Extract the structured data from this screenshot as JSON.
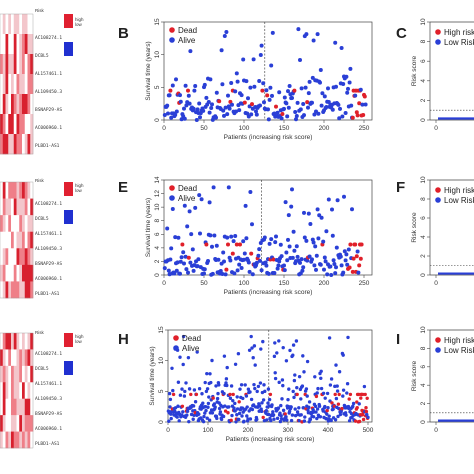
{
  "colors": {
    "dead": "#e0202a",
    "alive": "#2a3fd6",
    "high": "#e0202a",
    "low": "#2a3fd6"
  },
  "panel_labels": {
    "B": "B",
    "C": "C",
    "E": "E",
    "F": "F",
    "H": "H",
    "I": "I"
  },
  "heatmaps": [
    {
      "header": "Risk",
      "legend": [
        "high",
        "low"
      ],
      "genes": [
        "AC108274.1",
        "DCBL5",
        "AL157461.1",
        "AL109450.3",
        "BSNAP29-AS",
        "AC006960.1",
        "PLBD1-AS1"
      ]
    },
    {
      "header": "Risk",
      "legend": [
        "high",
        "low"
      ],
      "genes": [
        "AC108274.1",
        "DCBL5",
        "AL157461.1",
        "AL109450.3",
        "BSNAP29-AS",
        "AC006960.1",
        "PLBD1-AS1"
      ]
    },
    {
      "header": "Risk",
      "legend": [
        "high",
        "low"
      ],
      "genes": [
        "AC108274.1",
        "DCBL5",
        "AL157461.1",
        "AL109450.3",
        "BSNAP29-AS",
        "AC006960.1",
        "PLBD1-AS1"
      ]
    }
  ],
  "chart_data": [
    {
      "panel": "B",
      "type": "scatter",
      "xlabel": "Patients (increasing risk score)",
      "ylabel": "Survival time (years)",
      "xlim": [
        0,
        260
      ],
      "ylim": [
        0,
        15
      ],
      "xticks": [
        0,
        50,
        100,
        150,
        200,
        250
      ],
      "yticks": [
        0,
        5,
        10,
        15
      ],
      "cutoff_x": 126,
      "legend": [
        "Dead",
        "Alive"
      ],
      "legend_position": "top-left",
      "n_patients": 252,
      "seed": 11
    },
    {
      "panel": "E",
      "type": "scatter",
      "xlabel": "Patients (increasing risk score)",
      "ylabel": "Survival time (years)",
      "xlim": [
        0,
        260
      ],
      "ylim": [
        0,
        14
      ],
      "xticks": [
        0,
        50,
        100,
        150,
        200,
        250
      ],
      "yticks": [
        0,
        2,
        4,
        6,
        8,
        10,
        12,
        14
      ],
      "cutoff_x": 122,
      "legend": [
        "Dead",
        "Alive"
      ],
      "legend_position": "top-left",
      "n_patients": 247,
      "seed": 23
    },
    {
      "panel": "H",
      "type": "scatter",
      "xlabel": "Patients (increasing risk score)",
      "ylabel": "Survival time (years)",
      "xlim": [
        0,
        510
      ],
      "ylim": [
        0,
        15
      ],
      "xticks": [
        0,
        100,
        200,
        300,
        400,
        500
      ],
      "yticks": [
        0,
        5,
        10,
        15
      ],
      "cutoff_x": 252,
      "legend": [
        "Dead",
        "Alive"
      ],
      "legend_position": "top-left",
      "n_patients": 500,
      "seed": 37
    },
    {
      "panel": "C",
      "type": "line",
      "ylabel": "Risk score",
      "ylim": [
        0,
        10
      ],
      "yticks": [
        0,
        2,
        4,
        6,
        8,
        10
      ],
      "xticks": [
        0
      ],
      "legend": [
        "High risk",
        "Low Risk"
      ],
      "legend_position": "top-left",
      "threshold": 1
    },
    {
      "panel": "F",
      "type": "line",
      "ylabel": "Risk score",
      "ylim": [
        0,
        10
      ],
      "yticks": [
        0,
        2,
        4,
        6,
        8,
        10
      ],
      "xticks": [
        0
      ],
      "legend": [
        "High risk",
        "Low Risk"
      ],
      "legend_position": "top-left",
      "threshold": 1
    },
    {
      "panel": "I",
      "type": "line",
      "ylabel": "Risk score",
      "ylim": [
        0,
        10
      ],
      "yticks": [
        0,
        2,
        4,
        6,
        8,
        10
      ],
      "xticks": [
        0
      ],
      "legend": [
        "High risk",
        "Low Risk"
      ],
      "legend_position": "top-left",
      "threshold": 1
    }
  ]
}
